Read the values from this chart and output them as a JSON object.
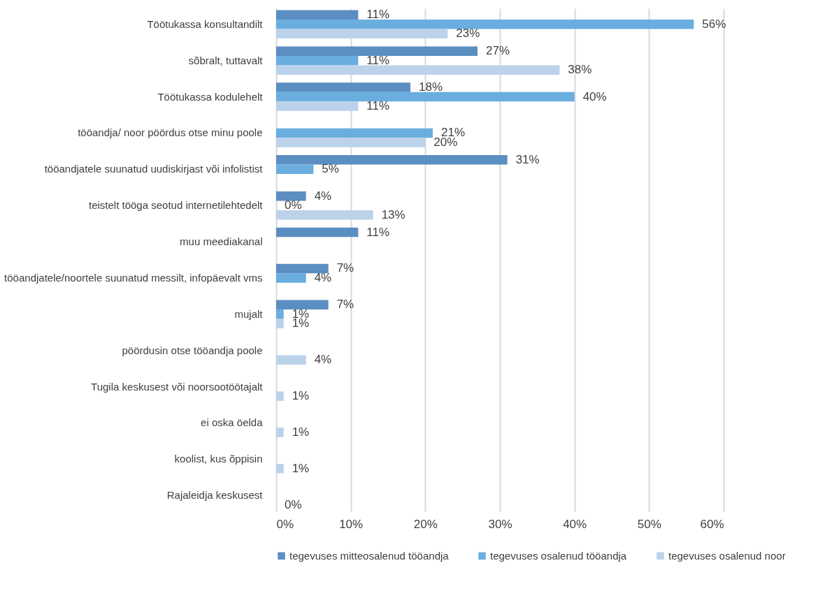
{
  "chart_data": {
    "type": "bar",
    "orientation": "horizontal",
    "categories": [
      "Töötukassa konsultandilt",
      "sõbralt, tuttavalt",
      "Töötukassa kodulehelt",
      "tööandja/ noor pöördus otse minu poole",
      "tööandjatele suunatud uudiskirjast või infolistist",
      "teistelt tööga seotud internetilehtedelt",
      "muu meediakanal",
      "tööandjatele/noortele suunatud messilt, infopäevalt vms",
      "mujalt",
      "pöördusin otse tööandja poole",
      "Tugila keskusest või noorsootöötajalt",
      "ei oska öelda",
      "koolist, kus õppisin",
      "Rajaleidja keskusest"
    ],
    "series": [
      {
        "name": "tegevuses mitteosalenud tööandja",
        "color": "#5b8ec1",
        "values": [
          11,
          27,
          18,
          null,
          31,
          4,
          11,
          7,
          7,
          null,
          null,
          null,
          null,
          null
        ],
        "value_labels": [
          "11%",
          "27%",
          "18%",
          null,
          "31%",
          "4%",
          "11%",
          "7%",
          "7%",
          null,
          null,
          null,
          null,
          null
        ]
      },
      {
        "name": "tegevuses osalenud tööandja",
        "color": "#6aaddf",
        "values": [
          56,
          11,
          40,
          21,
          5,
          0,
          null,
          4,
          1,
          null,
          null,
          null,
          null,
          null
        ],
        "value_labels": [
          "56%",
          "11%",
          "40%",
          "21%",
          "5%",
          "0%",
          null,
          "4%",
          "1%",
          null,
          null,
          null,
          null,
          null
        ]
      },
      {
        "name": "tegevuses osalenud noor",
        "color": "#bcd2eb",
        "values": [
          23,
          38,
          11,
          20,
          null,
          13,
          null,
          null,
          1,
          4,
          1,
          1,
          1,
          0
        ],
        "value_labels": [
          "23%",
          "38%",
          "11%",
          "20%",
          null,
          "13%",
          null,
          null,
          "1%",
          "4%",
          "1%",
          "1%",
          "1%",
          "0%"
        ]
      }
    ],
    "xlim": [
      0,
      60
    ],
    "xticks": [
      {
        "value": 0,
        "label": "0%"
      },
      {
        "value": 10,
        "label": "10%"
      },
      {
        "value": 20,
        "label": "20%"
      },
      {
        "value": 30,
        "label": "30%"
      },
      {
        "value": 40,
        "label": "40%"
      },
      {
        "value": 50,
        "label": "50%"
      },
      {
        "value": 60,
        "label": "60%"
      }
    ],
    "grid": "x",
    "legend": "bottom"
  }
}
